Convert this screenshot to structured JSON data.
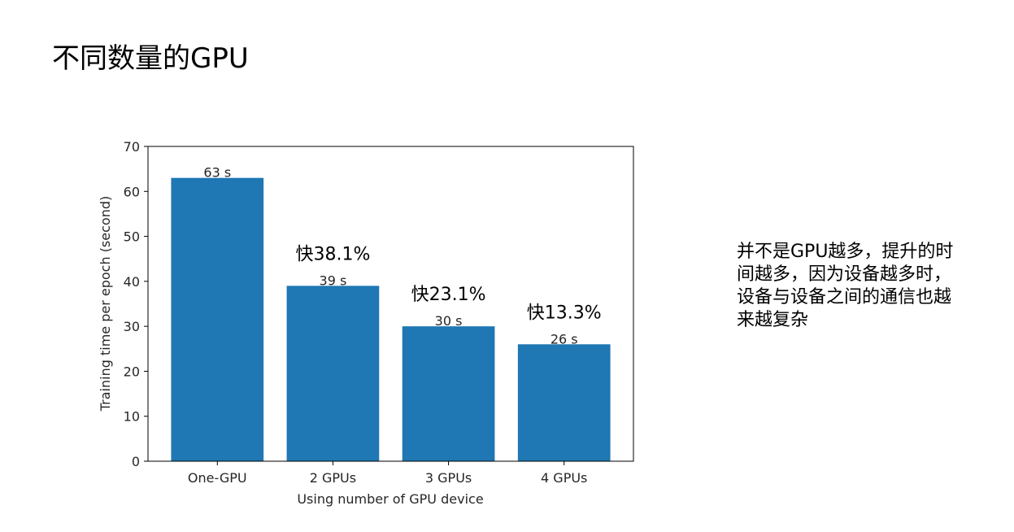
{
  "slide": {
    "title": "不同数量的GPU",
    "note": "并不是GPU越多，提升的时\n间越多，因为设备越多时，\n设备与设备之间的通信也越\n来越复杂"
  },
  "chart_data": {
    "type": "bar",
    "categories": [
      "One-GPU",
      "2 GPUs",
      "3 GPUs",
      "4 GPUs"
    ],
    "values": [
      63,
      39,
      30,
      26
    ],
    "value_labels": [
      "63 s",
      "39 s",
      "30 s",
      "26 s"
    ],
    "annotations": [
      "",
      "快38.1%",
      "快23.1%",
      "快13.3%"
    ],
    "xlabel": "Using number of GPU device",
    "ylabel": "Training time per epoch (second)",
    "ylim": [
      0,
      70
    ],
    "yticks": [
      0,
      10,
      20,
      30,
      40,
      50,
      60,
      70
    ],
    "bar_color": "#1f77b4",
    "grid": false
  }
}
